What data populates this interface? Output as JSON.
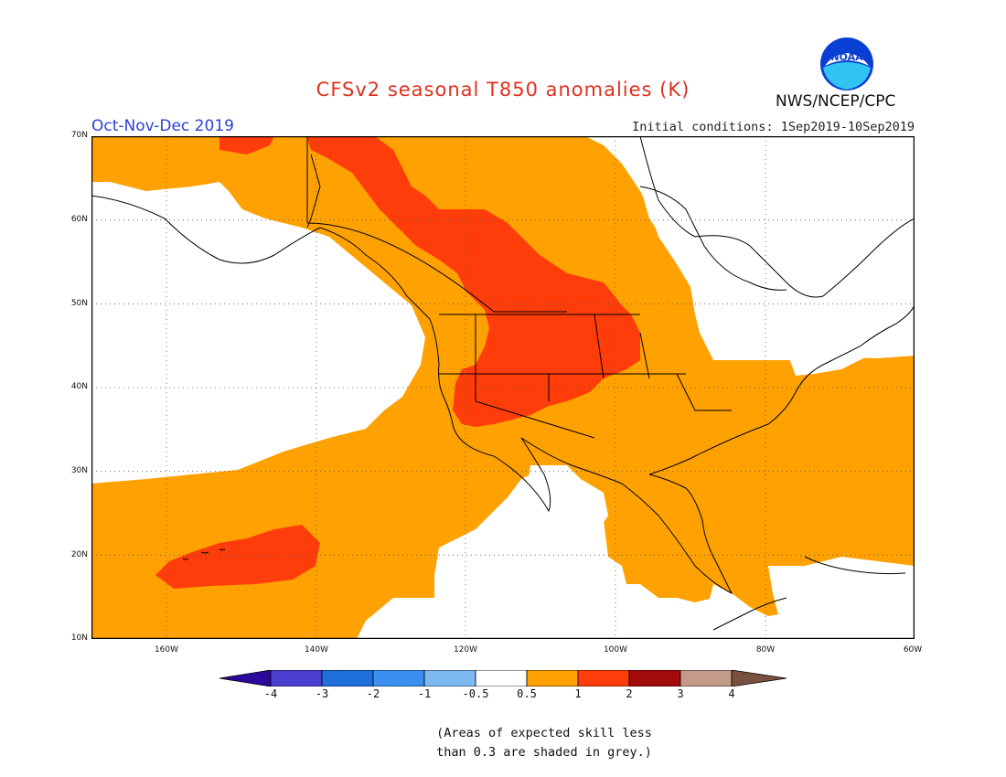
{
  "title": "CFSv2 seasonal T850 anomalies (K)",
  "period": "Oct-Nov-Dec 2019",
  "initial_conditions": "Initial conditions: 1Sep2019-10Sep2019",
  "agency": "NWS/NCEP/CPC",
  "logo_text": "NOAA",
  "lat_labels": [
    "70N",
    "60N",
    "50N",
    "40N",
    "30N",
    "20N",
    "10N"
  ],
  "lon_labels": [
    "160W",
    "140W",
    "120W",
    "100W",
    "80W",
    "60W"
  ],
  "colorbar": {
    "labels": [
      "-4",
      "-3",
      "-2",
      "-1",
      "-0.5",
      "0.5",
      "1",
      "2",
      "3",
      "4"
    ],
    "colors": [
      "#2a0a9c",
      "#4a3fd0",
      "#1e6fd9",
      "#3a8ff0",
      "#7fb9f2",
      "#ffffff",
      "#ffa100",
      "#ff3d0a",
      "#a30a0a",
      "#c49a88",
      "#7a5140"
    ]
  },
  "note_line1": "(Areas of expected skill less",
  "note_line2": "than 0.3 are shaded in grey.)"
}
